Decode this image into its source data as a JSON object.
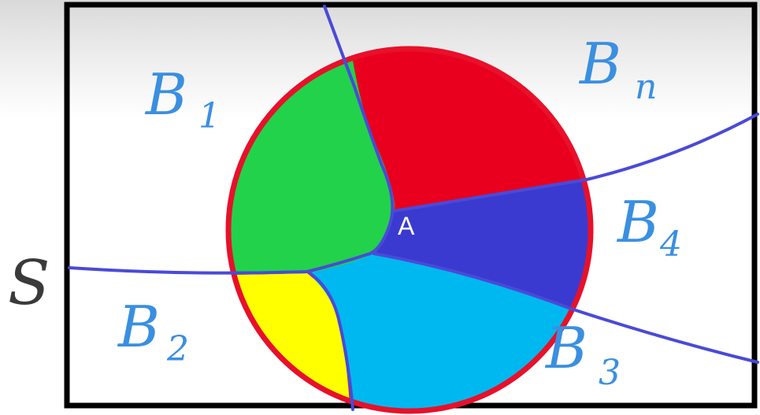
{
  "diagram": {
    "universe_label": "S",
    "event_label": "A",
    "partitions": [
      {
        "main": "B",
        "sub": "1"
      },
      {
        "main": "B",
        "sub": "2"
      },
      {
        "main": "B",
        "sub": "3"
      },
      {
        "main": "B",
        "sub": "4"
      },
      {
        "main": "B",
        "sub": "n"
      }
    ],
    "colors": {
      "circle_border": "#e8102a",
      "region_b1": "#22d24a",
      "region_b2": "#ffff00",
      "region_b3": "#00b8f0",
      "region_b4": "#3a3ad0",
      "region_bn": "#e8001e",
      "partition_lines": "#4a4ad8",
      "frame": "#000000",
      "labels": "#3a8fe0"
    }
  }
}
